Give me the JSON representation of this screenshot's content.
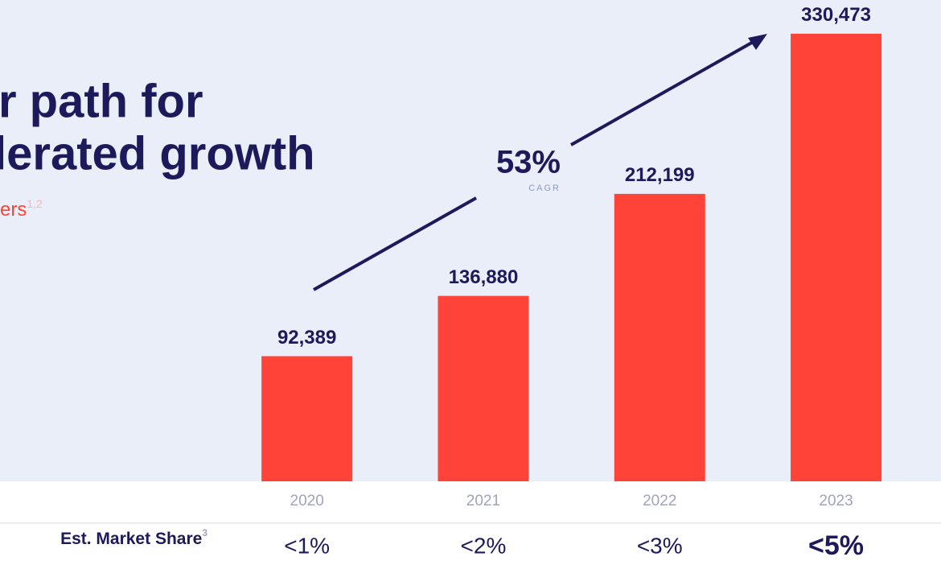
{
  "chart_data": {
    "type": "bar",
    "title": [
      "r path for",
      "lerated growth"
    ],
    "subtitle": "ers",
    "subtitle_note": "1,2",
    "annotation": {
      "text": "53%",
      "caption": "CAGR"
    },
    "categories": [
      "2020",
      "2021",
      "2022",
      "2023"
    ],
    "values": [
      92389,
      136880,
      212199,
      330473
    ],
    "value_labels": [
      "92,389",
      "136,880",
      "212,199",
      "330,473"
    ],
    "color": "#ff4338",
    "ylim": [
      0,
      350000
    ],
    "table": {
      "label": "Est. Market Share",
      "note": "3",
      "values": [
        "<1%",
        "<2%",
        "<3%",
        "<5%"
      ]
    }
  }
}
